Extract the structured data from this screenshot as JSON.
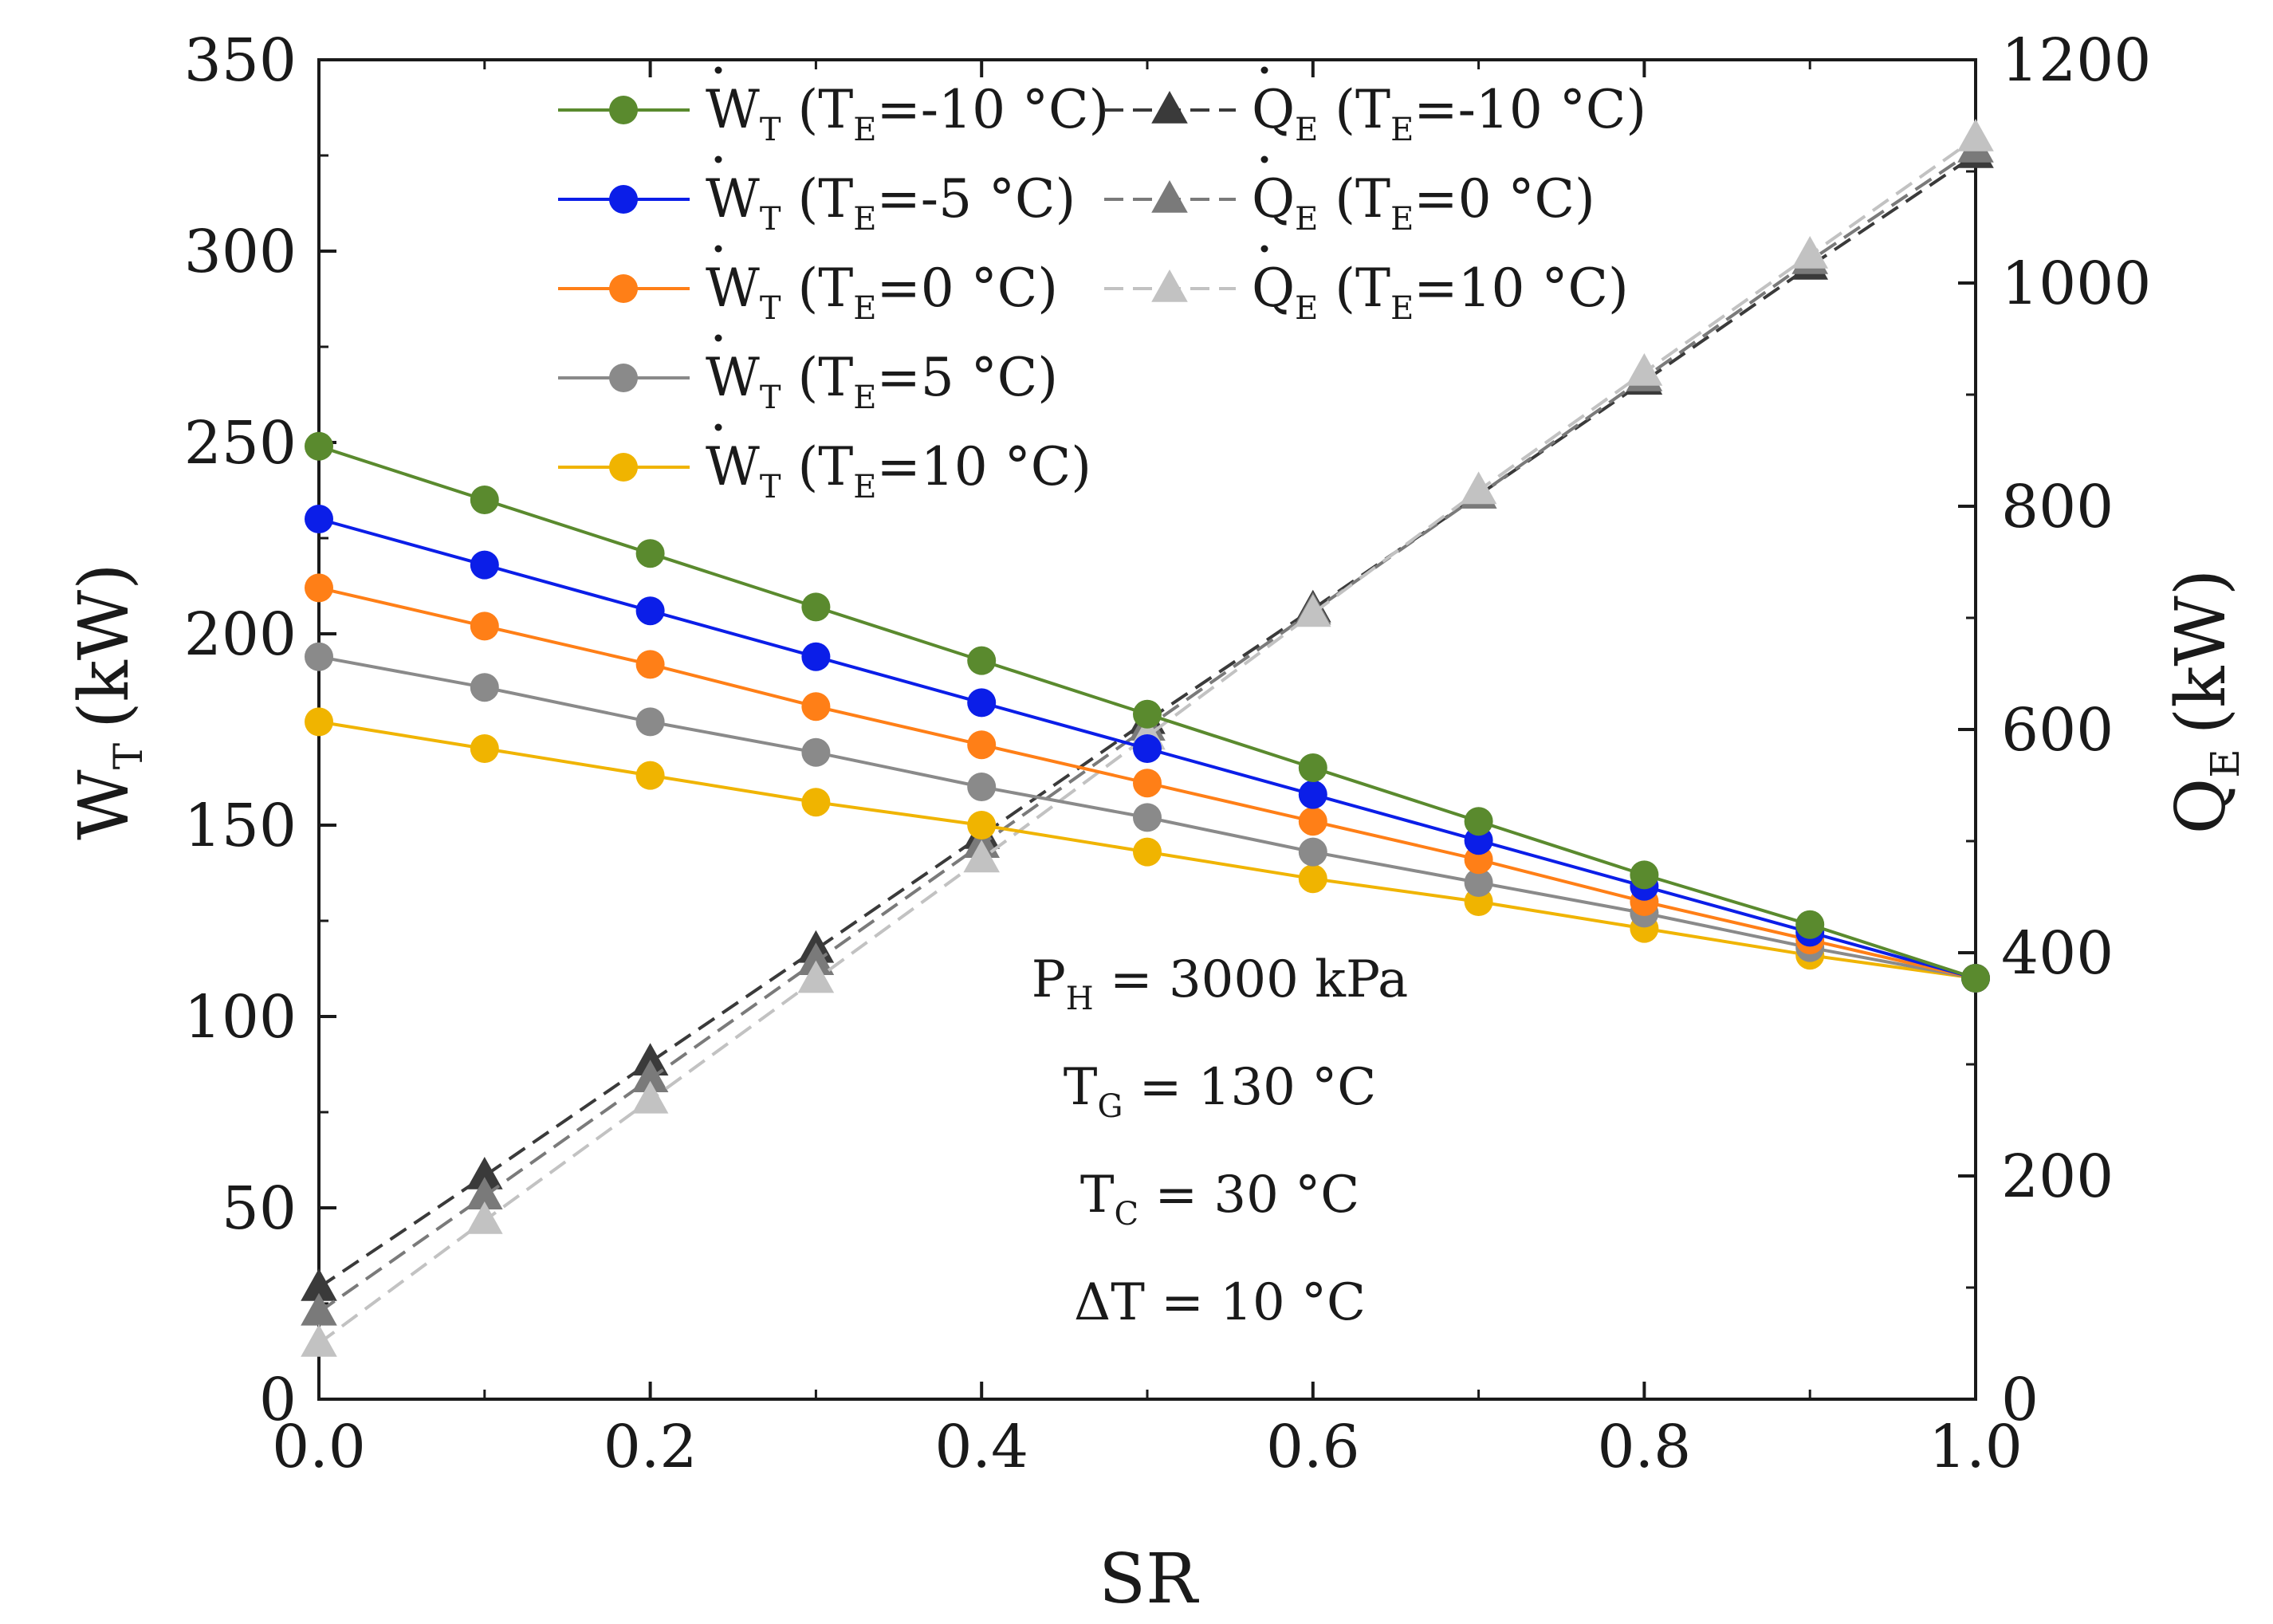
{
  "chart_data": {
    "type": "line",
    "x": [
      0.0,
      0.1,
      0.2,
      0.3,
      0.4,
      0.5,
      0.6,
      0.7,
      0.8,
      0.9,
      1.0
    ],
    "xlabel": "SR",
    "ylabel_left": {
      "base": "W",
      "sub": "T",
      "unit": "(kW)"
    },
    "ylabel_right": {
      "base": "Q",
      "sub": "E",
      "unit": "(kW)"
    },
    "xlim": [
      0,
      1.0
    ],
    "ylim_left": [
      0,
      350
    ],
    "ylim_right": [
      0,
      1200
    ],
    "xticks": [
      "0.0",
      "0.2",
      "0.4",
      "0.6",
      "0.8",
      "1.0"
    ],
    "yticks_left": [
      "0",
      "50",
      "100",
      "150",
      "200",
      "250",
      "300",
      "350"
    ],
    "yticks_right": [
      "0",
      "200",
      "400",
      "600",
      "800",
      "1000",
      "1200"
    ],
    "grid": false,
    "legend_position": "top",
    "series": [
      {
        "name": "W_T (T_E=-10 °C)",
        "base": "W",
        "sub": "T",
        "cond": "(T",
        "cond_sub": "E",
        "cond_val": "=-10 °C)",
        "axis": "left",
        "marker": "circle",
        "style": "solid",
        "color": "#5a8a2e",
        "values": [
          249,
          235,
          221,
          207,
          193,
          179,
          165,
          151,
          137,
          124,
          110
        ]
      },
      {
        "name": "W_T (T_E=-5 °C)",
        "base": "W",
        "sub": "T",
        "cond": "(T",
        "cond_sub": "E",
        "cond_val": "=-5 °C)",
        "axis": "left",
        "marker": "circle",
        "style": "solid",
        "color": "#0b1ee8",
        "values": [
          230,
          218,
          206,
          194,
          182,
          170,
          158,
          146,
          134,
          122,
          110
        ]
      },
      {
        "name": "W_T (T_E=0 °C)",
        "base": "W",
        "sub": "T",
        "cond": "(T",
        "cond_sub": "E",
        "cond_val": "=0 °C)",
        "axis": "left",
        "marker": "circle",
        "style": "solid",
        "color": "#ff7f17",
        "values": [
          212,
          202,
          192,
          181,
          171,
          161,
          151,
          141,
          130,
          120,
          110
        ]
      },
      {
        "name": "W_T (T_E=5 °C)",
        "base": "W",
        "sub": "T",
        "cond": "(T",
        "cond_sub": "E",
        "cond_val": "=5 °C)",
        "axis": "left",
        "marker": "circle",
        "style": "solid",
        "color": "#8a8a8a",
        "values": [
          194,
          186,
          177,
          169,
          160,
          152,
          143,
          135,
          127,
          118,
          110
        ]
      },
      {
        "name": "W_T (T_E=10 °C)",
        "base": "W",
        "sub": "T",
        "cond": "(T",
        "cond_sub": "E",
        "cond_val": "=10 °C)",
        "axis": "left",
        "marker": "circle",
        "style": "solid",
        "color": "#f0b400",
        "values": [
          177,
          170,
          163,
          156,
          150,
          143,
          136,
          130,
          123,
          116,
          110
        ]
      },
      {
        "name": "Q_E (T_E=-10 °C)",
        "base": "Q",
        "sub": "E",
        "cond": "(T",
        "cond_sub": "E",
        "cond_val": "=-10 °C)",
        "axis": "right",
        "marker": "triangle",
        "style": "dashed",
        "color": "#3a3a3a",
        "values": [
          100,
          200,
          302,
          403,
          505,
          608,
          708,
          810,
          912,
          1015,
          1115
        ]
      },
      {
        "name": "Q_E (T_E=0 °C)",
        "base": "Q",
        "sub": "E",
        "cond": "(T",
        "cond_sub": "E",
        "cond_val": "=0 °C)",
        "axis": "right",
        "marker": "triangle",
        "style": "dashed",
        "color": "#7a7a7a",
        "values": [
          78,
          182,
          287,
          392,
          497,
          602,
          706,
          810,
          915,
          1020,
          1120
        ]
      },
      {
        "name": "Q_E (T_E=10 °C)",
        "base": "Q",
        "sub": "E",
        "cond": "(T",
        "cond_sub": "E",
        "cond_val": "=10 °C)",
        "axis": "right",
        "marker": "triangle",
        "style": "dashed",
        "color": "#c2c2c2",
        "values": [
          50,
          160,
          268,
          376,
          484,
          594,
          704,
          814,
          920,
          1025,
          1130
        ]
      }
    ],
    "annotations": [
      {
        "base": "P",
        "sub": "H",
        "rest": " = 3000 kPa"
      },
      {
        "base": "T",
        "sub": "G",
        "rest": " = 130 °C"
      },
      {
        "base": "T",
        "sub": "C",
        "rest": " = 30 °C"
      },
      {
        "base": "ΔT",
        "sub": "",
        "rest": " = 10 °C"
      }
    ]
  }
}
